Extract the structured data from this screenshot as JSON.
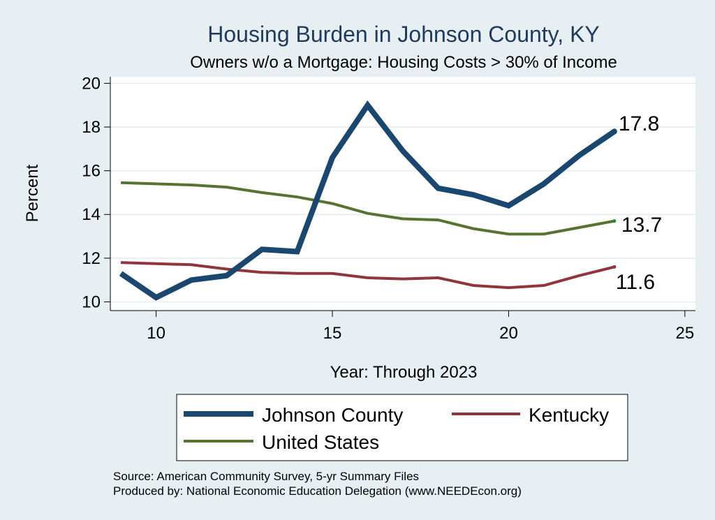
{
  "title": "Housing Burden in Johnson County, KY",
  "subtitle": "Owners w/o a Mortgage: Housing Costs > 30% of Income",
  "source_line1": "Source: American Community Survey, 5-yr Summary Files",
  "source_line2": "Produced by: National Economic Education Delegation (www.NEEDEcon.org)",
  "chart_data": {
    "type": "line",
    "title": "Housing Burden in Johnson County, KY",
    "subtitle": "Owners w/o a Mortgage: Housing Costs > 30% of Income",
    "xlabel": "Year: Through 2023",
    "ylabel": "Percent",
    "xlim": [
      8.7,
      25.3
    ],
    "ylim": [
      9.6,
      20.3
    ],
    "xticks": [
      10,
      15,
      20,
      25
    ],
    "yticks": [
      10,
      12,
      14,
      16,
      18,
      20
    ],
    "grid": true,
    "legend_position": "bottom",
    "x": [
      9,
      10,
      11,
      12,
      13,
      14,
      15,
      16,
      17,
      18,
      19,
      20,
      21,
      22,
      23
    ],
    "series": [
      {
        "name": "Johnson County",
        "color": "#1a476f",
        "values": [
          11.3,
          10.2,
          11.0,
          11.2,
          12.4,
          12.3,
          16.6,
          19.0,
          16.9,
          15.2,
          14.9,
          14.4,
          15.4,
          16.7,
          17.8
        ],
        "end_label": "17.8"
      },
      {
        "name": "Kentucky",
        "color": "#90353b",
        "values": [
          11.8,
          11.75,
          11.7,
          11.5,
          11.35,
          11.3,
          11.3,
          11.1,
          11.05,
          11.1,
          10.75,
          10.65,
          10.75,
          11.2,
          11.6
        ],
        "end_label": "11.6"
      },
      {
        "name": "United States",
        "color": "#55752f",
        "values": [
          15.45,
          15.4,
          15.35,
          15.25,
          15.0,
          14.8,
          14.5,
          14.05,
          13.8,
          13.75,
          13.35,
          13.1,
          13.1,
          13.4,
          13.7
        ],
        "end_label": "13.7"
      }
    ]
  }
}
